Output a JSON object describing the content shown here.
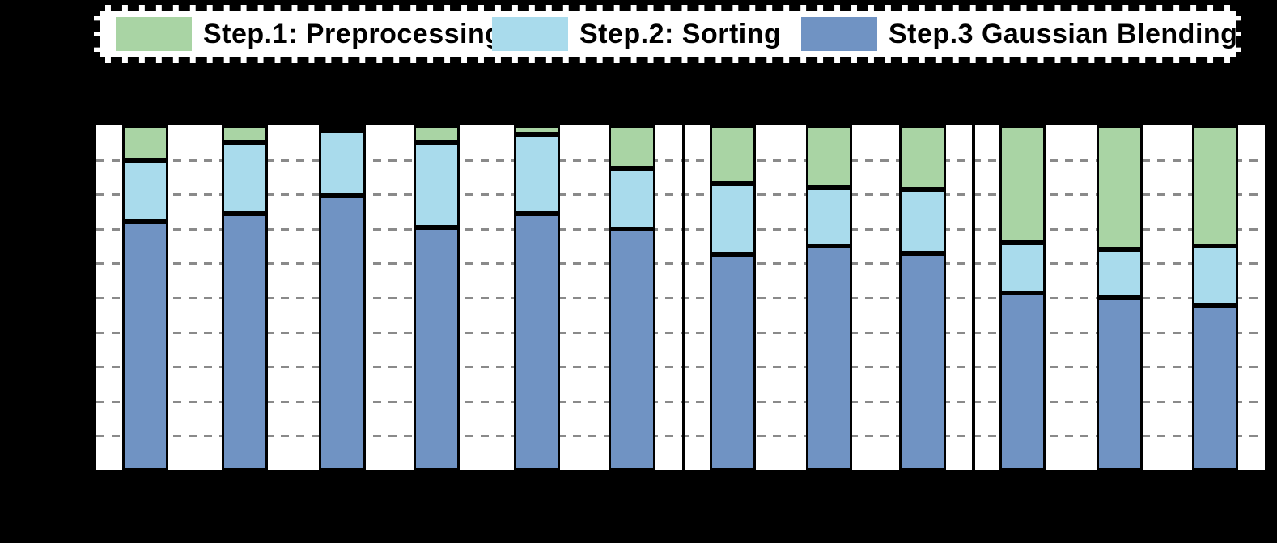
{
  "legend": {
    "items": [
      {
        "label": "Step.1: Preprocessing",
        "color": "#a9d4a4"
      },
      {
        "label": "Step.2: Sorting",
        "color": "#a9dbec"
      },
      {
        "label": "Step.3 Gaussian Blending",
        "color": "#7093c3"
      }
    ]
  },
  "colors": {
    "page_background": "#000000",
    "plot_background": "#ffffff",
    "legend_background": "#ffffff",
    "bar_edge": "#000000",
    "gridline": "#8a8a8a",
    "step1_green": "#a9d4a4",
    "step2_lightblue": "#a9dbec",
    "step3_steelblue": "#7093c3"
  },
  "chart_data": {
    "type": "bar",
    "stacked": true,
    "normalized_percent": true,
    "title": "",
    "xlabel": "",
    "ylabel": "",
    "n_bars": 12,
    "bar_groups": [
      6,
      3,
      3
    ],
    "ylim": [
      0,
      100
    ],
    "gridline_step_percent": 10,
    "grid": "dashed horizontal",
    "legend_position": "top",
    "series": [
      {
        "name": "Step.1: Preprocessing",
        "short": "preprocessing",
        "stack_position": "top",
        "color": "#a9d4a4",
        "values": [
          10,
          5,
          1.5,
          5,
          2.5,
          12.5,
          17,
          18,
          18.5,
          34,
          36,
          35
        ]
      },
      {
        "name": "Step.2: Sorting",
        "short": "sorting",
        "stack_position": "middle",
        "color": "#a9dbec",
        "values": [
          18,
          20.5,
          19,
          24.5,
          23,
          17.5,
          20.5,
          17,
          18.5,
          14.5,
          14,
          17
        ]
      },
      {
        "name": "Step.3 Gaussian Blending",
        "short": "gaussian-blending",
        "stack_position": "bottom",
        "color": "#7093c3",
        "values": [
          72,
          74.5,
          79.5,
          70.5,
          74.5,
          70,
          62.5,
          65,
          63,
          51.5,
          50,
          48
        ]
      }
    ]
  }
}
